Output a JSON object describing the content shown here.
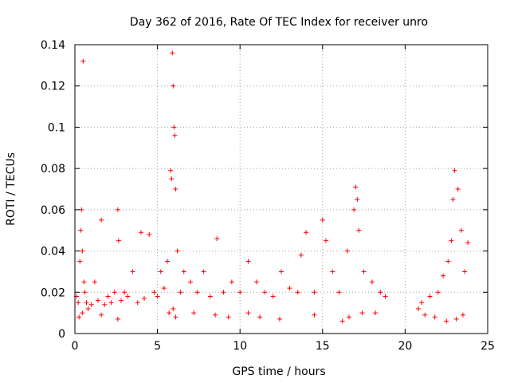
{
  "chart_data": {
    "type": "scatter",
    "title": "Day 362 of 2016, Rate Of TEC Index for receiver unro",
    "xlabel": "GPS time / hours",
    "ylabel": "ROTI / TECUs",
    "xlim": [
      0,
      25
    ],
    "ylim": [
      0,
      0.14
    ],
    "xticks": [
      0,
      5,
      10,
      15,
      20,
      25
    ],
    "yticks": [
      0,
      0.02,
      0.04,
      0.06,
      0.08,
      0.1,
      0.12,
      0.14
    ],
    "xtick_labels": [
      "0",
      "5",
      "10",
      "15",
      "20",
      "25"
    ],
    "ytick_labels": [
      "0",
      "0.02",
      "0.04",
      "0.06",
      "0.08",
      "0.1",
      "0.12",
      "0.14"
    ],
    "grid": true,
    "marker": "+",
    "color": "#ff0000",
    "data_gap_hours": [
      18.8,
      20.8
    ],
    "series": [
      {
        "x": [
          0.1,
          0.2,
          0.3,
          0.35,
          0.4,
          0.45,
          0.5,
          0.55,
          0.6,
          0.7,
          0.8,
          1.0,
          1.2,
          1.4,
          1.6,
          1.8,
          2.0,
          2.2,
          2.4,
          2.6,
          2.65,
          2.8,
          3.0,
          3.2,
          3.5,
          3.8,
          4.0,
          4.2,
          4.5,
          4.8,
          5.0,
          5.2,
          5.4,
          5.6,
          5.8,
          5.85,
          5.9,
          5.95,
          6.0,
          6.05,
          6.1,
          6.2,
          6.4,
          6.6,
          7.0,
          7.4,
          7.8,
          8.2,
          8.6,
          9.0,
          9.5,
          10.0,
          10.5,
          11.0,
          11.5,
          12.0,
          12.5,
          13.0,
          13.5,
          13.7,
          14.0,
          14.5,
          15.0,
          15.2,
          15.6,
          16.0,
          16.5,
          16.9,
          17.0,
          17.1,
          17.2,
          17.5,
          18.0,
          18.5,
          18.8,
          20.8,
          21.0,
          21.5,
          22.0,
          22.3,
          22.6,
          22.8,
          22.9,
          23.0,
          23.2,
          23.4,
          23.6,
          23.8,
          0.25,
          0.45,
          1.6,
          2.6,
          5.7,
          5.95,
          6.1,
          7.2,
          8.5,
          9.3,
          10.5,
          11.2,
          12.4,
          14.5,
          16.2,
          16.6,
          17.4,
          18.2,
          21.2,
          21.8,
          22.5,
          23.1,
          23.5
        ],
        "y": [
          0.018,
          0.015,
          0.035,
          0.05,
          0.06,
          0.04,
          0.132,
          0.025,
          0.02,
          0.015,
          0.012,
          0.014,
          0.025,
          0.016,
          0.055,
          0.014,
          0.018,
          0.015,
          0.02,
          0.06,
          0.045,
          0.016,
          0.02,
          0.018,
          0.03,
          0.015,
          0.049,
          0.017,
          0.048,
          0.02,
          0.018,
          0.03,
          0.022,
          0.035,
          0.079,
          0.075,
          0.136,
          0.12,
          0.1,
          0.096,
          0.07,
          0.04,
          0.02,
          0.03,
          0.025,
          0.02,
          0.03,
          0.018,
          0.046,
          0.02,
          0.025,
          0.02,
          0.035,
          0.025,
          0.02,
          0.018,
          0.03,
          0.022,
          0.02,
          0.038,
          0.049,
          0.02,
          0.055,
          0.045,
          0.03,
          0.02,
          0.04,
          0.06,
          0.071,
          0.065,
          0.05,
          0.03,
          0.025,
          0.02,
          0.018,
          0.012,
          0.015,
          0.018,
          0.02,
          0.028,
          0.035,
          0.045,
          0.065,
          0.079,
          0.07,
          0.05,
          0.03,
          0.044,
          0.008,
          0.01,
          0.009,
          0.007,
          0.01,
          0.012,
          0.008,
          0.01,
          0.009,
          0.008,
          0.01,
          0.008,
          0.007,
          0.009,
          0.006,
          0.008,
          0.01,
          0.01,
          0.009,
          0.008,
          0.006,
          0.007,
          0.009
        ]
      }
    ]
  }
}
